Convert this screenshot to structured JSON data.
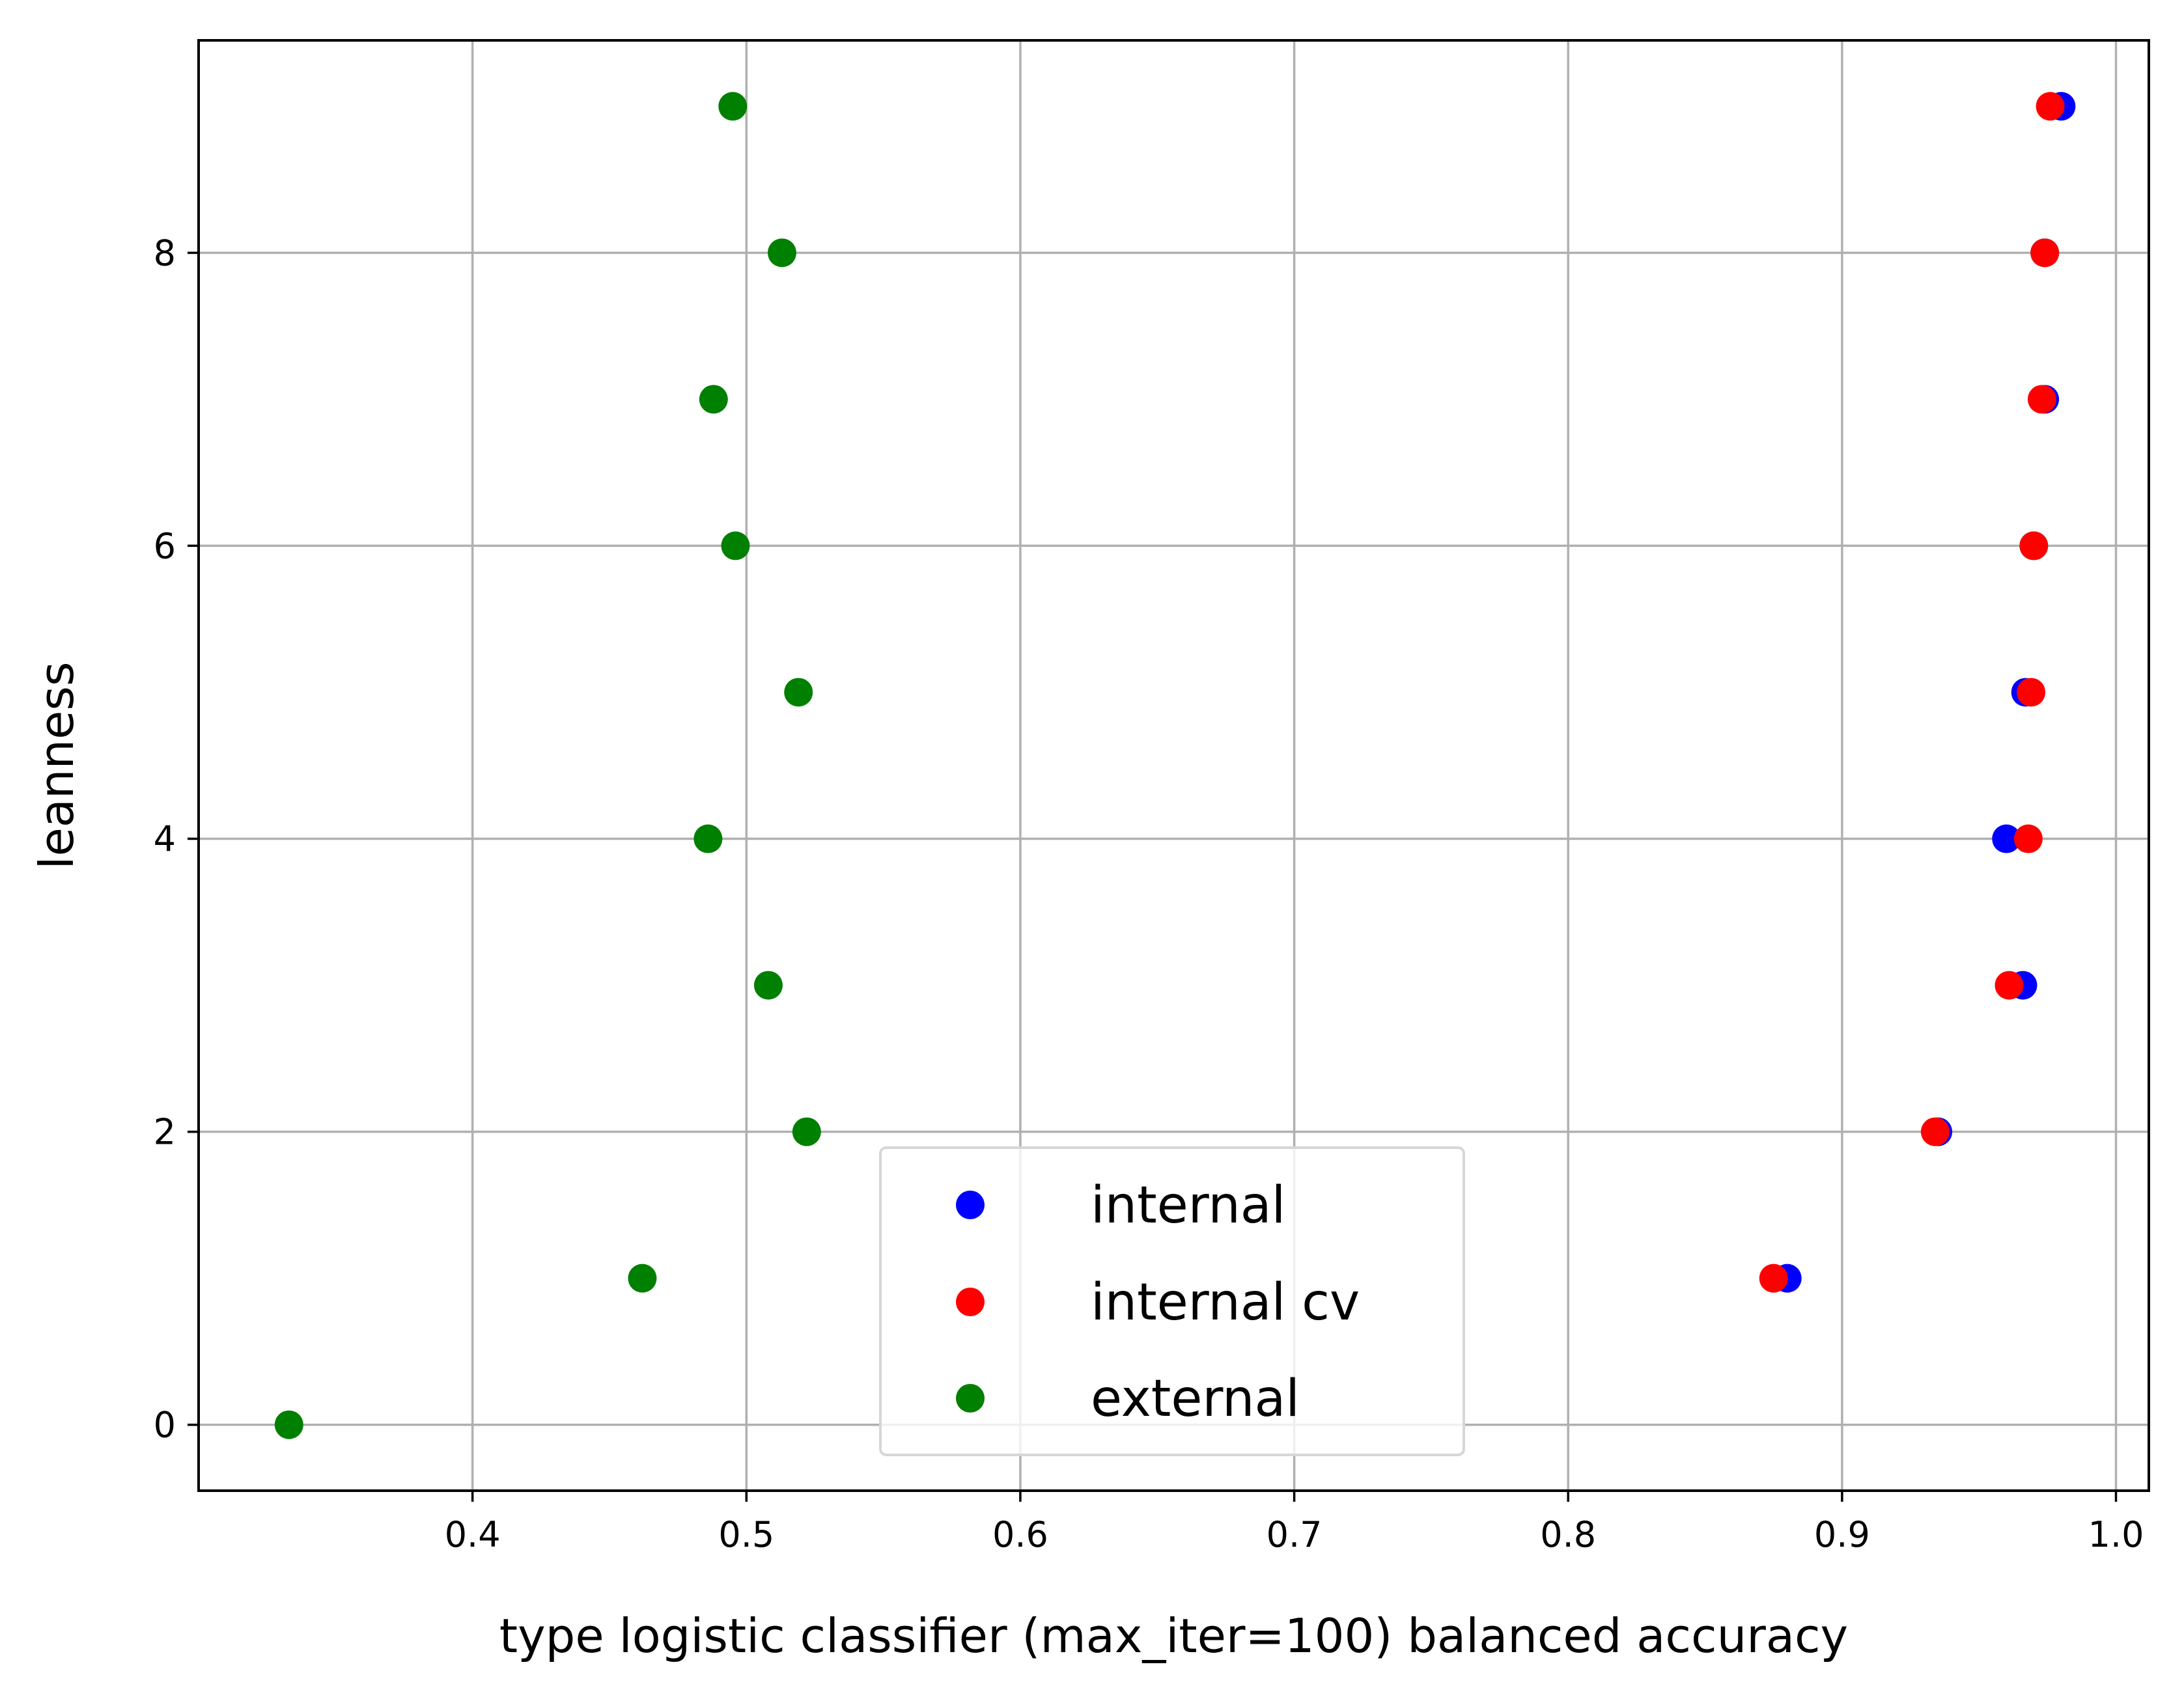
{
  "chart_data": {
    "type": "scatter",
    "xlabel": "type logistic classifier (max_iter=100) balanced accuracy",
    "ylabel": "leanness",
    "xlim": [
      0.3,
      1.012
    ],
    "ylim": [
      -0.45,
      9.45
    ],
    "xticks": [
      0.4,
      0.5,
      0.6,
      0.7,
      0.8,
      0.9,
      1.0
    ],
    "xtick_labels": [
      "0.4",
      "0.5",
      "0.6",
      "0.7",
      "0.8",
      "0.9",
      "1.0"
    ],
    "yticks": [
      0,
      2,
      4,
      6,
      8
    ],
    "ytick_labels": [
      "0",
      "2",
      "4",
      "6",
      "8"
    ],
    "grid": true,
    "legend_position": "lower-center",
    "series": [
      {
        "name": "internal",
        "color": "#0000ff",
        "points": [
          {
            "x": 0.88,
            "y": 1
          },
          {
            "x": 0.935,
            "y": 2
          },
          {
            "x": 0.966,
            "y": 3
          },
          {
            "x": 0.96,
            "y": 4
          },
          {
            "x": 0.967,
            "y": 5
          },
          {
            "x": 0.97,
            "y": 6
          },
          {
            "x": 0.974,
            "y": 7
          },
          {
            "x": 0.974,
            "y": 8
          },
          {
            "x": 0.98,
            "y": 9
          }
        ]
      },
      {
        "name": "internal cv",
        "color": "#ff0000",
        "points": [
          {
            "x": 0.875,
            "y": 1
          },
          {
            "x": 0.934,
            "y": 2
          },
          {
            "x": 0.961,
            "y": 3
          },
          {
            "x": 0.968,
            "y": 4
          },
          {
            "x": 0.969,
            "y": 5
          },
          {
            "x": 0.97,
            "y": 6
          },
          {
            "x": 0.973,
            "y": 7
          },
          {
            "x": 0.974,
            "y": 8
          },
          {
            "x": 0.976,
            "y": 9
          }
        ]
      },
      {
        "name": "external",
        "color": "#008000",
        "points": [
          {
            "x": 0.333,
            "y": 0
          },
          {
            "x": 0.462,
            "y": 1
          },
          {
            "x": 0.522,
            "y": 2
          },
          {
            "x": 0.508,
            "y": 3
          },
          {
            "x": 0.486,
            "y": 4
          },
          {
            "x": 0.519,
            "y": 5
          },
          {
            "x": 0.496,
            "y": 6
          },
          {
            "x": 0.488,
            "y": 7
          },
          {
            "x": 0.513,
            "y": 8
          },
          {
            "x": 0.495,
            "y": 9
          }
        ]
      }
    ]
  }
}
